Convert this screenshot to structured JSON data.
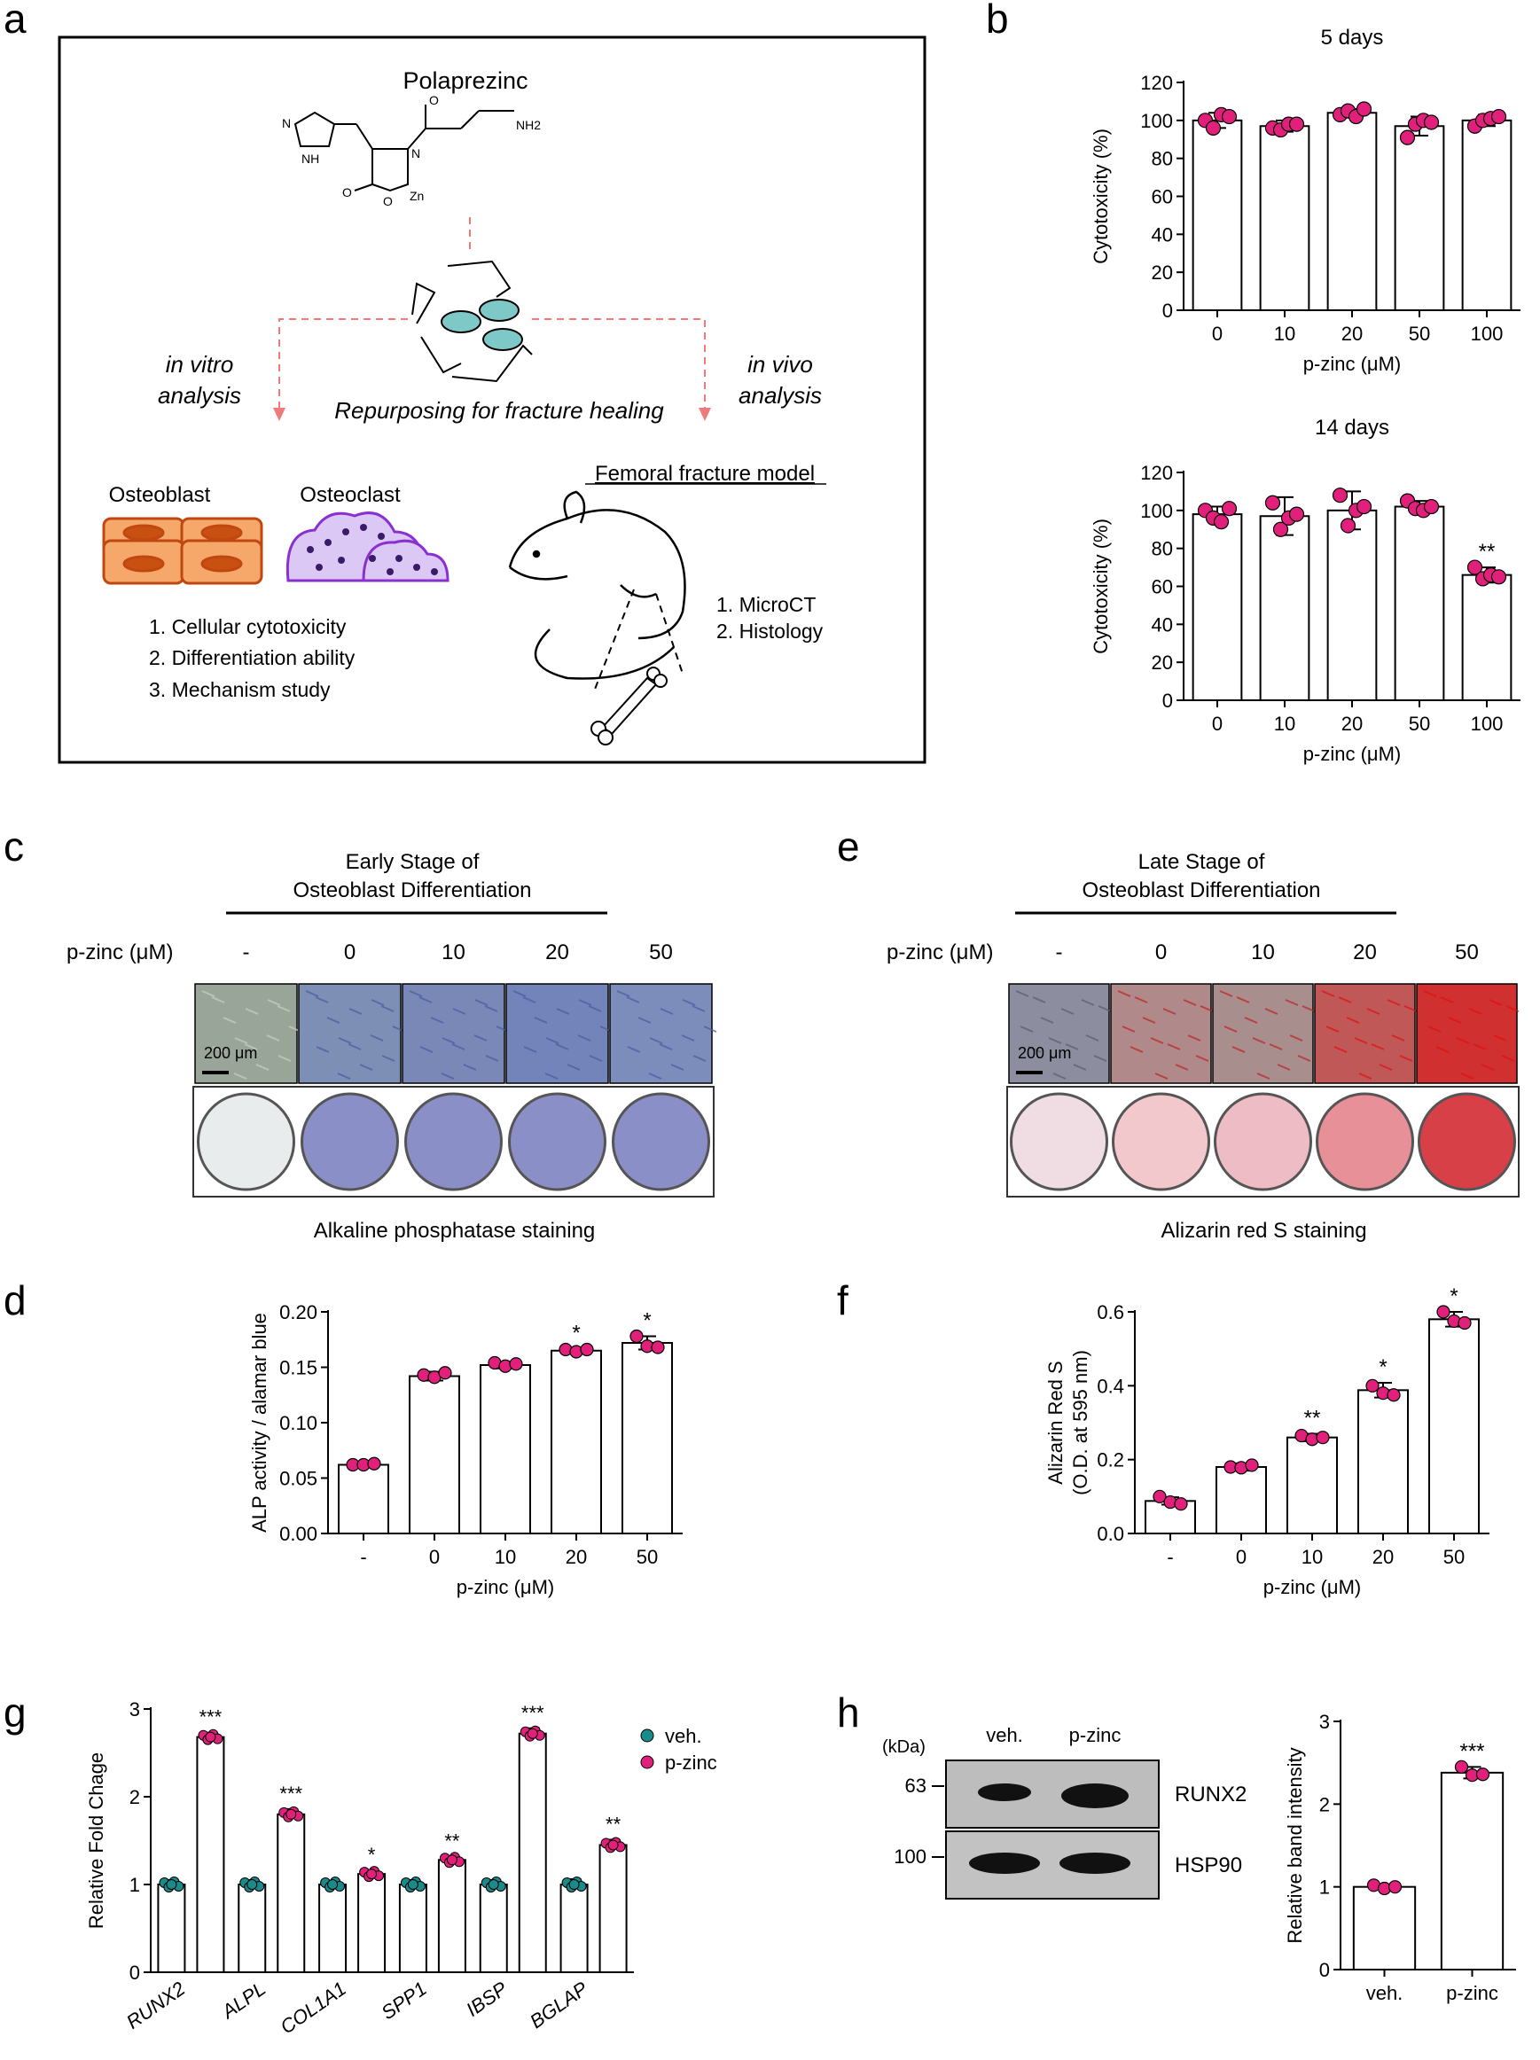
{
  "panel_labels": {
    "a": "a",
    "b": "b",
    "c": "c",
    "d": "d",
    "e": "e",
    "f": "f",
    "g": "g",
    "h": "h"
  },
  "schematic": {
    "drug_name": "Polaprezinc",
    "left_branch": [
      "in vitro",
      "analysis"
    ],
    "right_branch": [
      "in vivo",
      "analysis"
    ],
    "center_label": "Repurposing for fracture healing",
    "osteoblast_label": "Osteoblast",
    "osteoclast_label": "Osteoclast",
    "model_label": "Femoral fracture model",
    "in_vitro_list": [
      "1.  Cellular cytotoxicity",
      "2.  Differentiation ability",
      "3.  Mechanism study"
    ],
    "in_vivo_list": [
      "1.  MicroCT",
      "2.  Histology"
    ],
    "molecule_atoms": {
      "o1": "O",
      "o2": "O",
      "nh2": "NH2",
      "nh": "NH",
      "n": "N",
      "n2": "N",
      "zn": "Zn",
      "o3": "O"
    }
  },
  "staining_c": {
    "header": [
      "Early Stage of",
      "Osteoblast Differentiation"
    ],
    "row_label": "p-zinc (μM)",
    "conditions": [
      "-",
      "0",
      "10",
      "20",
      "50"
    ],
    "scale_bar": "200 μm",
    "caption": "Alkaline phosphatase staining"
  },
  "staining_e": {
    "header": [
      "Late Stage of",
      "Osteoblast Differentiation"
    ],
    "row_label": "p-zinc (μM)",
    "conditions": [
      "-",
      "0",
      "10",
      "20",
      "50"
    ],
    "scale_bar": "200 μm",
    "caption": "Alizarin red S staining"
  },
  "blot_h": {
    "kda_label": "(kDa)",
    "lanes": [
      "veh.",
      "p-zinc"
    ],
    "markers": [
      "63",
      "100"
    ],
    "proteins": [
      "RUNX2",
      "HSP90"
    ]
  },
  "chart_data": [
    {
      "id": "b1",
      "type": "bar",
      "title": "5 days",
      "categories": [
        "0",
        "10",
        "20",
        "50",
        "100"
      ],
      "values": [
        100,
        97,
        104,
        97,
        100
      ],
      "err": [
        4,
        3,
        2,
        5,
        3
      ],
      "ylim": [
        0,
        120
      ],
      "yticks": [
        "0",
        "20",
        "40",
        "60",
        "80",
        "100",
        "120"
      ],
      "ylabel": "Cytotoxicity (%)",
      "xlabel": "p-zinc (μM)",
      "points": [
        [
          100,
          96,
          103,
          102
        ],
        [
          96,
          95,
          98,
          98
        ],
        [
          103,
          105,
          102,
          106
        ],
        [
          91,
          98,
          100,
          99
        ],
        [
          97,
          100,
          101,
          102
        ]
      ],
      "sig": [
        "",
        "",
        "",
        "",
        ""
      ]
    },
    {
      "id": "b2",
      "type": "bar",
      "title": "14 days",
      "categories": [
        "0",
        "10",
        "20",
        "50",
        "100"
      ],
      "values": [
        98,
        97,
        100,
        102,
        66
      ],
      "err": [
        4,
        10,
        10,
        3,
        4
      ],
      "ylim": [
        0,
        120
      ],
      "yticks": [
        "0",
        "20",
        "40",
        "60",
        "80",
        "100",
        "120"
      ],
      "ylabel": "Cytotoxicity (%)",
      "xlabel": "p-zinc (μM)",
      "points": [
        [
          100,
          96,
          94,
          101
        ],
        [
          104,
          90,
          96,
          98
        ],
        [
          108,
          92,
          100,
          102
        ],
        [
          105,
          101,
          100,
          102
        ],
        [
          70,
          64,
          66,
          65
        ]
      ],
      "sig": [
        "",
        "",
        "",
        "",
        "**"
      ]
    },
    {
      "id": "d",
      "type": "bar",
      "title": "",
      "categories": [
        "-",
        "0",
        "10",
        "20",
        "50"
      ],
      "values": [
        0.062,
        0.142,
        0.152,
        0.165,
        0.172
      ],
      "err": [
        0.001,
        0.004,
        0.003,
        0.002,
        0.006
      ],
      "ylim": [
        0,
        0.2
      ],
      "yticks": [
        "0.00",
        "0.05",
        "0.10",
        "0.15",
        "0.20"
      ],
      "ylabel": "ALP activity / alamar blue",
      "xlabel": "p-zinc (μM)",
      "points": [
        [
          0.062,
          0.062,
          0.063
        ],
        [
          0.143,
          0.141,
          0.145
        ],
        [
          0.154,
          0.151,
          0.153
        ],
        [
          0.166,
          0.164,
          0.166
        ],
        [
          0.178,
          0.169,
          0.168
        ]
      ],
      "sig": [
        "",
        "",
        "",
        "*",
        "*"
      ]
    },
    {
      "id": "f",
      "type": "bar",
      "title": "",
      "categories": [
        "-",
        "0",
        "10",
        "20",
        "50"
      ],
      "values": [
        0.088,
        0.18,
        0.26,
        0.388,
        0.58
      ],
      "err": [
        0.01,
        0.01,
        0.01,
        0.02,
        0.02
      ],
      "ylim": [
        0,
        0.6
      ],
      "yticks": [
        "0.0",
        "0.2",
        "0.4",
        "0.6"
      ],
      "ylabel": "Alizarin Red S",
      "ylabel2": "(O.D. at 595 nm)",
      "xlabel": "p-zinc (μM)",
      "points": [
        [
          0.1,
          0.085,
          0.08
        ],
        [
          0.18,
          0.178,
          0.185
        ],
        [
          0.265,
          0.255,
          0.26
        ],
        [
          0.4,
          0.38,
          0.375
        ],
        [
          0.6,
          0.575,
          0.57
        ]
      ],
      "sig": [
        "",
        "",
        "**",
        "*",
        "*"
      ]
    },
    {
      "id": "g",
      "type": "bar",
      "title": "",
      "categories": [
        "RUNX2",
        "ALPL",
        "COL1A1",
        "SPP1",
        "IBSP",
        "BGLAP"
      ],
      "series": [
        {
          "name": "veh.",
          "values": [
            1,
            1,
            1,
            1,
            1,
            1
          ],
          "err": [
            0.05,
            0.05,
            0.04,
            0.05,
            0.05,
            0.06
          ],
          "color": "#1a8a8a"
        },
        {
          "name": "p-zinc",
          "values": [
            2.68,
            1.8,
            1.12,
            1.28,
            2.72,
            1.45
          ],
          "err": [
            0.05,
            0.06,
            0.04,
            0.04,
            0.06,
            0.06
          ],
          "color": "#e0207a"
        }
      ],
      "ylim": [
        0,
        3
      ],
      "yticks": [
        "0",
        "1",
        "2",
        "3"
      ],
      "ylabel": "Relative Fold Chage",
      "sig": [
        "***",
        "***",
        "*",
        "**",
        "***",
        "**"
      ]
    },
    {
      "id": "h",
      "type": "bar",
      "title": "",
      "categories": [
        "veh.",
        "p-zinc"
      ],
      "values": [
        1,
        2.38
      ],
      "err": [
        0.03,
        0.07
      ],
      "ylim": [
        0,
        3
      ],
      "yticks": [
        "0",
        "1",
        "2",
        "3"
      ],
      "ylabel": "Relative band intensity",
      "xlabel": "",
      "points": [
        [
          1.02,
          0.98,
          1.0
        ],
        [
          2.45,
          2.35,
          2.36
        ]
      ],
      "sig": [
        "",
        "***"
      ]
    }
  ]
}
